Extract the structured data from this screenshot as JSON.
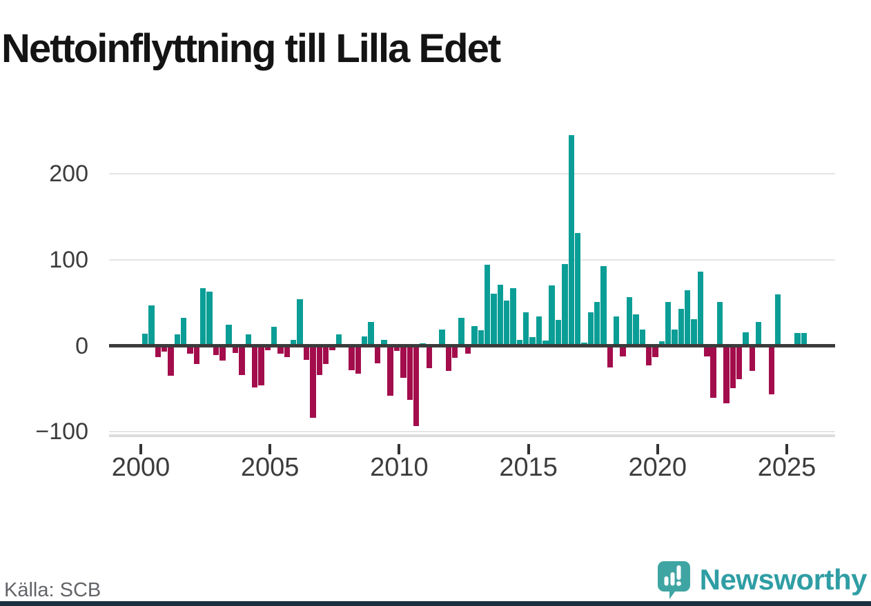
{
  "title": "Nettoinflyttning till Lilla Edet",
  "source": "Källa: SCB",
  "branding": {
    "name": "Newsworthy"
  },
  "colors": {
    "positive": "#0b9e96",
    "negative": "#a30d4c",
    "brand_teal": "#2f9ea4",
    "accent_bar": "#1b2f3f",
    "zero_line": "#3b3b3b",
    "gridline": "#e4e4e4"
  },
  "chart_data": {
    "type": "bar",
    "title": "Nettoinflyttning till Lilla Edet",
    "x_unit": "quarter",
    "categories": [
      "2000 Q1",
      "2000 Q2",
      "2000 Q3",
      "2000 Q4",
      "2001 Q1",
      "2001 Q2",
      "2001 Q3",
      "2001 Q4",
      "2002 Q1",
      "2002 Q2",
      "2002 Q3",
      "2002 Q4",
      "2003 Q1",
      "2003 Q2",
      "2003 Q3",
      "2003 Q4",
      "2004 Q1",
      "2004 Q2",
      "2004 Q3",
      "2004 Q4",
      "2005 Q1",
      "2005 Q2",
      "2005 Q3",
      "2005 Q4",
      "2006 Q1",
      "2006 Q2",
      "2006 Q3",
      "2006 Q4",
      "2007 Q1",
      "2007 Q2",
      "2007 Q3",
      "2007 Q4",
      "2008 Q1",
      "2008 Q2",
      "2008 Q3",
      "2008 Q4",
      "2009 Q1",
      "2009 Q2",
      "2009 Q3",
      "2009 Q4",
      "2010 Q1",
      "2010 Q2",
      "2010 Q3",
      "2010 Q4",
      "2011 Q1",
      "2011 Q2",
      "2011 Q3",
      "2011 Q4",
      "2012 Q1",
      "2012 Q2",
      "2012 Q3",
      "2012 Q4",
      "2013 Q1",
      "2013 Q2",
      "2013 Q3",
      "2013 Q4",
      "2014 Q1",
      "2014 Q2",
      "2014 Q3",
      "2014 Q4",
      "2015 Q1",
      "2015 Q2",
      "2015 Q3",
      "2015 Q4",
      "2016 Q1",
      "2016 Q2",
      "2016 Q3",
      "2016 Q4",
      "2017 Q1",
      "2017 Q2",
      "2017 Q3",
      "2017 Q4",
      "2018 Q1",
      "2018 Q2",
      "2018 Q3",
      "2018 Q4",
      "2019 Q1",
      "2019 Q2",
      "2019 Q3",
      "2019 Q4",
      "2020 Q1",
      "2020 Q2",
      "2020 Q3",
      "2020 Q4",
      "2021 Q1",
      "2021 Q2",
      "2021 Q3",
      "2021 Q4",
      "2022 Q1",
      "2022 Q2",
      "2022 Q3",
      "2022 Q4",
      "2023 Q1",
      "2023 Q2",
      "2023 Q3",
      "2023 Q4",
      "2024 Q1",
      "2024 Q2",
      "2024 Q3",
      "2024 Q4",
      "2025 Q1",
      "2025 Q2",
      "2025 Q3"
    ],
    "values": [
      14,
      47,
      -13,
      -7,
      -35,
      13,
      33,
      -9,
      -21,
      67,
      63,
      -11,
      -17,
      25,
      -8,
      -34,
      13,
      -48,
      -46,
      -5,
      22,
      -9,
      -13,
      7,
      54,
      -16,
      -84,
      -34,
      -21,
      -5,
      13,
      0,
      -28,
      -32,
      11,
      28,
      -20,
      7,
      -58,
      -6,
      -37,
      -63,
      -93,
      3,
      -26,
      0,
      19,
      -29,
      -14,
      33,
      -9,
      23,
      18,
      94,
      61,
      71,
      53,
      67,
      7,
      39,
      10,
      34,
      6,
      70,
      30,
      95,
      245,
      131,
      4,
      39,
      51,
      93,
      -25,
      34,
      -12,
      57,
      37,
      19,
      -23,
      -13,
      5,
      51,
      19,
      43,
      65,
      31,
      86,
      -12,
      -60,
      51,
      -67,
      -49,
      -39,
      16,
      -29,
      28,
      -2,
      -56,
      60,
      0,
      -2,
      15,
      15
    ],
    "ylim": [
      -100,
      250
    ],
    "yticks": [
      200,
      100,
      0,
      -100
    ],
    "ytick_labels": [
      "200",
      "100",
      "0",
      "−100"
    ],
    "xticks": [
      2000,
      2005,
      2010,
      2015,
      2020,
      2025
    ],
    "xtick_labels": [
      "2000",
      "2005",
      "2010",
      "2015",
      "2020",
      "2025"
    ],
    "grid": "horizontal",
    "legend": "none",
    "positive_color": "#0b9e96",
    "negative_color": "#a30d4c",
    "source": "Källa: SCB"
  }
}
